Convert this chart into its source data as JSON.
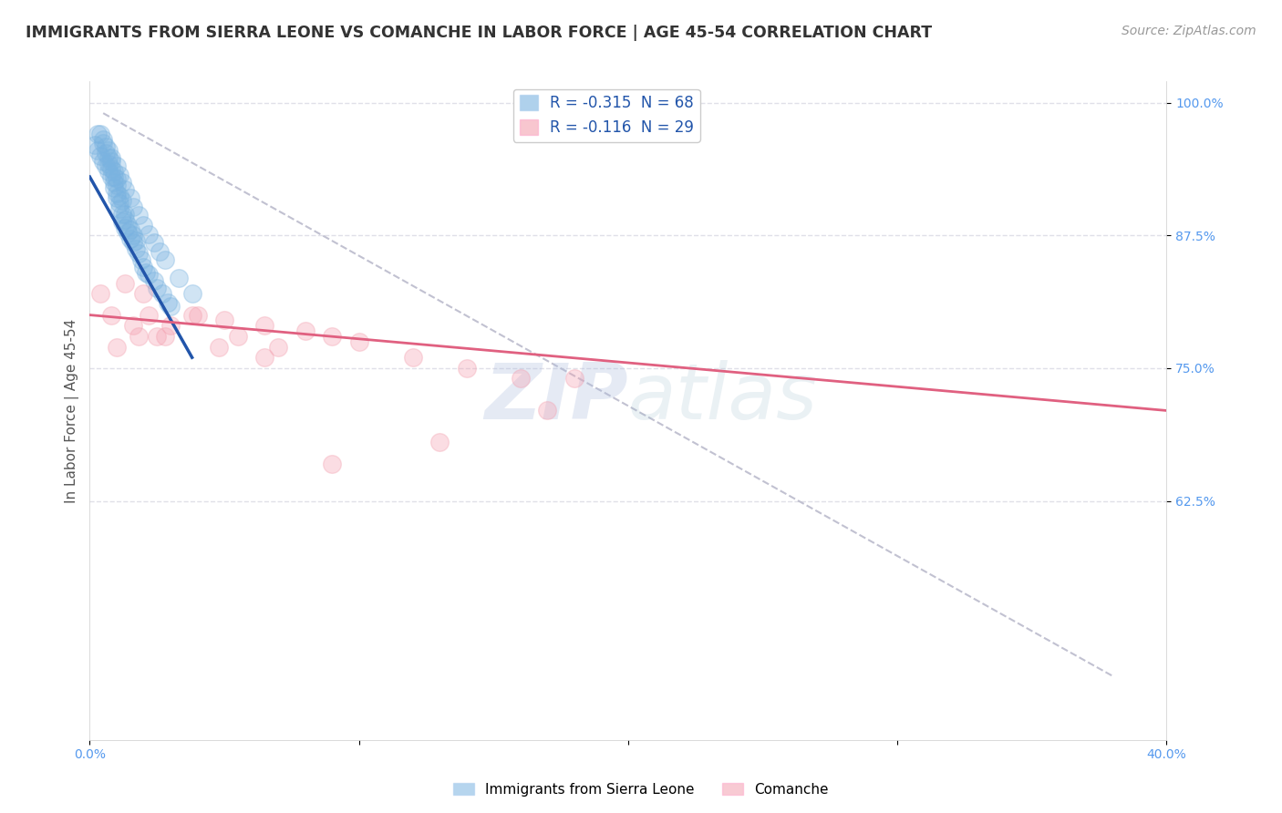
{
  "title": "IMMIGRANTS FROM SIERRA LEONE VS COMANCHE IN LABOR FORCE | AGE 45-54 CORRELATION CHART",
  "source": "Source: ZipAtlas.com",
  "ylabel": "In Labor Force | Age 45-54",
  "xlim": [
    0.0,
    0.4
  ],
  "ylim": [
    0.4,
    1.02
  ],
  "blue_scatter_x": [
    0.002,
    0.003,
    0.004,
    0.004,
    0.005,
    0.005,
    0.006,
    0.006,
    0.006,
    0.007,
    0.007,
    0.007,
    0.008,
    0.008,
    0.008,
    0.009,
    0.009,
    0.009,
    0.009,
    0.01,
    0.01,
    0.01,
    0.01,
    0.011,
    0.011,
    0.011,
    0.012,
    0.012,
    0.012,
    0.013,
    0.013,
    0.013,
    0.014,
    0.014,
    0.015,
    0.015,
    0.016,
    0.016,
    0.017,
    0.017,
    0.018,
    0.019,
    0.02,
    0.021,
    0.022,
    0.024,
    0.025,
    0.027,
    0.029,
    0.03,
    0.003,
    0.005,
    0.007,
    0.008,
    0.01,
    0.011,
    0.012,
    0.013,
    0.015,
    0.016,
    0.018,
    0.02,
    0.022,
    0.024,
    0.026,
    0.028,
    0.033,
    0.038
  ],
  "blue_scatter_y": [
    0.96,
    0.955,
    0.97,
    0.95,
    0.965,
    0.945,
    0.958,
    0.94,
    0.952,
    0.935,
    0.948,
    0.942,
    0.93,
    0.938,
    0.945,
    0.925,
    0.93,
    0.92,
    0.935,
    0.915,
    0.922,
    0.91,
    0.928,
    0.905,
    0.912,
    0.9,
    0.895,
    0.908,
    0.888,
    0.895,
    0.882,
    0.89,
    0.878,
    0.885,
    0.872,
    0.88,
    0.868,
    0.875,
    0.862,
    0.87,
    0.858,
    0.852,
    0.845,
    0.84,
    0.838,
    0.832,
    0.825,
    0.82,
    0.812,
    0.808,
    0.97,
    0.962,
    0.955,
    0.948,
    0.94,
    0.932,
    0.925,
    0.918,
    0.91,
    0.902,
    0.894,
    0.885,
    0.876,
    0.868,
    0.86,
    0.852,
    0.835,
    0.82
  ],
  "pink_scatter_x": [
    0.004,
    0.008,
    0.013,
    0.016,
    0.02,
    0.022,
    0.025,
    0.03,
    0.04,
    0.05,
    0.055,
    0.065,
    0.07,
    0.08,
    0.09,
    0.1,
    0.12,
    0.14,
    0.16,
    0.18,
    0.01,
    0.018,
    0.028,
    0.038,
    0.048,
    0.065,
    0.09,
    0.13,
    0.17
  ],
  "pink_scatter_y": [
    0.82,
    0.8,
    0.83,
    0.79,
    0.82,
    0.8,
    0.78,
    0.79,
    0.8,
    0.795,
    0.78,
    0.79,
    0.77,
    0.785,
    0.78,
    0.775,
    0.76,
    0.75,
    0.74,
    0.74,
    0.77,
    0.78,
    0.78,
    0.8,
    0.77,
    0.76,
    0.66,
    0.68,
    0.71
  ],
  "blue_line_x": [
    0.0,
    0.038
  ],
  "blue_line_y": [
    0.93,
    0.76
  ],
  "pink_line_x": [
    0.0,
    0.4
  ],
  "pink_line_y": [
    0.8,
    0.71
  ],
  "diag_line_x": [
    0.005,
    0.38
  ],
  "diag_line_y": [
    0.99,
    0.46
  ],
  "watermark_zip": "ZIP",
  "watermark_atlas": "atlas",
  "blue_color": "#7ab3e0",
  "pink_color": "#f4a0b0",
  "blue_line_color": "#2255aa",
  "pink_line_color": "#e06080",
  "diag_line_color": "#bbbbcc",
  "background_color": "#ffffff",
  "grid_color": "#e0e0e8",
  "title_color": "#333333",
  "axis_label_color": "#555555",
  "tick_color_right": "#5599ee",
  "tick_color_bottom": "#5599ee",
  "legend_label_color": "#2255aa"
}
